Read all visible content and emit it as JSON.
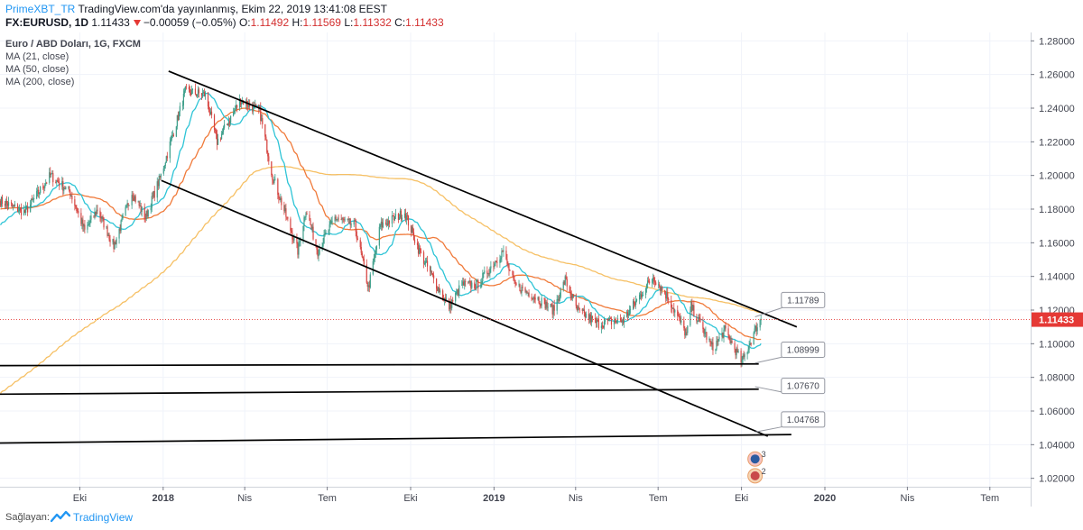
{
  "header": {
    "publisher": "PrimeXBT_TR",
    "published_text": "TradingView.com'da yayınlanmış, Ekim 22, 2019 13:41:08 EEST",
    "symbol_label": "FX:EURUSD, 1D",
    "last_price": "1.11433",
    "change": "−0.00059 (−0.05%)",
    "o_label": "O:",
    "o_value": "1.11492",
    "h_label": "H:",
    "h_value": "1.11569",
    "l_label": "L:",
    "l_value": "1.11332",
    "c_label": "C:",
    "c_value": "1.11433"
  },
  "legend": {
    "title": "Euro / ABD Doları, 1G, FXCM",
    "ma21": "MA (21, close)",
    "ma50": "MA (50, close)",
    "ma200": "MA (200, close)"
  },
  "footer": {
    "label": "Sağlayan:",
    "brand": "TradingView"
  },
  "colors": {
    "up": "#3d9e8a",
    "down": "#d64541",
    "ma21": "#2ec4d6",
    "ma50": "#f07a3a",
    "ma200": "#f6c065",
    "price_line": "#e53935",
    "trendline": "#000000",
    "callout_text": "#434651",
    "brand": "#2196f3"
  },
  "chart_data": {
    "type": "candlestick",
    "instrument": "EURUSD",
    "ylim": [
      1.015,
      1.285
    ],
    "xlim": [
      "2017-07-05",
      "2020-08-15"
    ],
    "y_ticks": [
      "1.28000",
      "1.26000",
      "1.24000",
      "1.22000",
      "1.20000",
      "1.18000",
      "1.16000",
      "1.14000",
      "1.12000",
      "1.10000",
      "1.08000",
      "1.06000",
      "1.04000",
      "1.02000"
    ],
    "x_ticks": [
      {
        "date": "2017-10-01",
        "label": "Eki",
        "bold": false
      },
      {
        "date": "2018-01-01",
        "label": "2018",
        "bold": true
      },
      {
        "date": "2018-04-01",
        "label": "Nis",
        "bold": false
      },
      {
        "date": "2018-07-01",
        "label": "Tem",
        "bold": false
      },
      {
        "date": "2018-10-01",
        "label": "Eki",
        "bold": false
      },
      {
        "date": "2019-01-01",
        "label": "2019",
        "bold": true
      },
      {
        "date": "2019-04-01",
        "label": "Nis",
        "bold": false
      },
      {
        "date": "2019-07-01",
        "label": "Tem",
        "bold": false
      },
      {
        "date": "2019-10-01",
        "label": "Eki",
        "bold": false
      },
      {
        "date": "2020-01-01",
        "label": "2020",
        "bold": true
      },
      {
        "date": "2020-04-01",
        "label": "Nis",
        "bold": false
      },
      {
        "date": "2020-07-01",
        "label": "Tem",
        "bold": false
      }
    ],
    "price_path": [
      [
        "2017-07-05",
        1.185
      ],
      [
        "2017-08-01",
        1.178
      ],
      [
        "2017-08-29",
        1.2
      ],
      [
        "2017-09-20",
        1.19
      ],
      [
        "2017-10-06",
        1.167
      ],
      [
        "2017-10-20",
        1.18
      ],
      [
        "2017-11-07",
        1.158
      ],
      [
        "2017-11-27",
        1.19
      ],
      [
        "2017-12-12",
        1.175
      ],
      [
        "2017-12-29",
        1.2
      ],
      [
        "2018-01-25",
        1.25
      ],
      [
        "2018-02-16",
        1.248
      ],
      [
        "2018-03-01",
        1.22
      ],
      [
        "2018-03-27",
        1.245
      ],
      [
        "2018-04-17",
        1.238
      ],
      [
        "2018-05-01",
        1.2
      ],
      [
        "2018-05-29",
        1.155
      ],
      [
        "2018-06-07",
        1.18
      ],
      [
        "2018-06-20",
        1.155
      ],
      [
        "2018-07-09",
        1.175
      ],
      [
        "2018-07-31",
        1.17
      ],
      [
        "2018-08-15",
        1.133
      ],
      [
        "2018-08-28",
        1.17
      ],
      [
        "2018-09-24",
        1.178
      ],
      [
        "2018-10-10",
        1.155
      ],
      [
        "2018-10-31",
        1.133
      ],
      [
        "2018-11-12",
        1.122
      ],
      [
        "2018-11-26",
        1.135
      ],
      [
        "2018-12-13",
        1.135
      ],
      [
        "2019-01-10",
        1.155
      ],
      [
        "2019-01-23",
        1.135
      ],
      [
        "2019-02-15",
        1.128
      ],
      [
        "2019-03-07",
        1.12
      ],
      [
        "2019-03-20",
        1.138
      ],
      [
        "2019-04-02",
        1.12
      ],
      [
        "2019-04-25",
        1.112
      ],
      [
        "2019-05-23",
        1.114
      ],
      [
        "2019-06-25",
        1.14
      ],
      [
        "2019-07-12",
        1.127
      ],
      [
        "2019-08-01",
        1.105
      ],
      [
        "2019-08-06",
        1.122
      ],
      [
        "2019-08-30",
        1.097
      ],
      [
        "2019-09-12",
        1.108
      ],
      [
        "2019-10-01",
        1.089
      ],
      [
        "2019-10-17",
        1.11
      ],
      [
        "2019-10-22",
        1.1143
      ]
    ],
    "ma": [
      {
        "name": "MA (21, close)",
        "period": 21
      },
      {
        "name": "MA (50, close)",
        "period": 50
      },
      {
        "name": "MA (200, close)",
        "period": 200
      }
    ],
    "last_price": {
      "value": 1.11433,
      "label": "1.11433"
    },
    "trendlines": [
      {
        "from": [
          "2018-01-07",
          1.262
        ],
        "to": [
          "2019-12-01",
          1.11
        ]
      },
      {
        "from": [
          "2017-12-30",
          1.197
        ],
        "to": [
          "2019-10-30",
          1.045
        ]
      },
      {
        "from": [
          "2017-07-05",
          1.087
        ],
        "to": [
          "2019-10-20",
          1.088
        ]
      },
      {
        "from": [
          "2017-07-05",
          1.07
        ],
        "to": [
          "2019-10-20",
          1.073
        ]
      },
      {
        "from": [
          "2017-07-05",
          1.041
        ],
        "to": [
          "2019-11-25",
          1.046
        ]
      }
    ],
    "callouts": [
      {
        "label": "1.11789",
        "anchor": [
          "2019-10-16",
          1.116
        ],
        "box": [
          "2019-11-14",
          1.1305
        ]
      },
      {
        "label": "1.08999",
        "anchor": [
          "2019-10-16",
          1.0885
        ],
        "box": [
          "2019-11-14",
          1.101
        ]
      },
      {
        "label": "1.07670",
        "anchor": [
          "2019-10-16",
          1.0745
        ],
        "box": [
          "2019-11-14",
          1.0795
        ]
      },
      {
        "label": "1.04768",
        "anchor": [
          "2019-10-16",
          1.0475
        ],
        "box": [
          "2019-11-14",
          1.0595
        ]
      }
    ],
    "event_icons": [
      {
        "date": "2019-10-16",
        "value": 1.0315,
        "label": "3"
      },
      {
        "date": "2019-10-16",
        "value": 1.0215,
        "label": "2"
      }
    ]
  }
}
